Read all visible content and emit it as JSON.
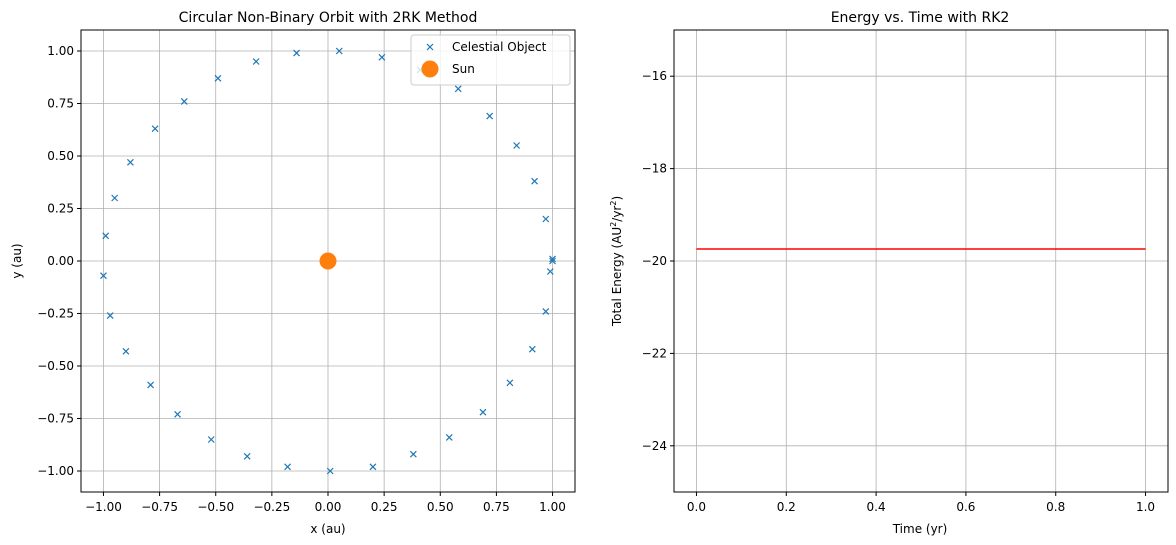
{
  "chart_data": [
    {
      "type": "scatter",
      "title": "Circular Non-Binary Orbit with 2RK Method",
      "xlabel": "x (au)",
      "ylabel": "y (au)",
      "xlim": [
        -1.1,
        1.1
      ],
      "ylim": [
        -1.1,
        1.1
      ],
      "xticks": [
        -1.0,
        -0.75,
        -0.5,
        -0.25,
        0.0,
        0.25,
        0.5,
        0.75,
        1.0
      ],
      "xtick_labels": [
        "−1.00",
        "−0.75",
        "−0.50",
        "−0.25",
        "0.00",
        "0.25",
        "0.50",
        "0.75",
        "1.00"
      ],
      "yticks": [
        -1.0,
        -0.75,
        -0.5,
        -0.25,
        0.0,
        0.25,
        0.5,
        0.75,
        1.0
      ],
      "ytick_labels": [
        "−1.00",
        "−0.75",
        "−0.50",
        "−0.25",
        "0.00",
        "0.25",
        "0.50",
        "0.75",
        "1.00"
      ],
      "grid": true,
      "legend": {
        "placement": "upper-right"
      },
      "series": [
        {
          "name": "Celestial Object",
          "marker": "x",
          "color": "#1f77b4",
          "points": [
            [
              1.0,
              0.0
            ],
            [
              0.99,
              -0.05
            ],
            [
              0.97,
              -0.24
            ],
            [
              0.91,
              -0.42
            ],
            [
              0.81,
              -0.58
            ],
            [
              0.69,
              -0.72
            ],
            [
              0.54,
              -0.84
            ],
            [
              0.38,
              -0.92
            ],
            [
              0.2,
              -0.98
            ],
            [
              0.01,
              -1.0
            ],
            [
              -0.18,
              -0.98
            ],
            [
              -0.36,
              -0.93
            ],
            [
              -0.52,
              -0.85
            ],
            [
              -0.67,
              -0.73
            ],
            [
              -0.79,
              -0.59
            ],
            [
              -0.9,
              -0.43
            ],
            [
              -0.97,
              -0.26
            ],
            [
              -1.0,
              -0.07
            ],
            [
              -0.99,
              0.12
            ],
            [
              -0.95,
              0.3
            ],
            [
              -0.88,
              0.47
            ],
            [
              -0.77,
              0.63
            ],
            [
              -0.64,
              0.76
            ],
            [
              -0.49,
              0.87
            ],
            [
              -0.32,
              0.95
            ],
            [
              -0.14,
              0.99
            ],
            [
              0.05,
              1.0
            ],
            [
              0.24,
              0.97
            ],
            [
              0.41,
              0.91
            ],
            [
              0.58,
              0.82
            ],
            [
              0.72,
              0.69
            ],
            [
              0.84,
              0.55
            ],
            [
              0.92,
              0.38
            ],
            [
              0.97,
              0.2
            ],
            [
              1.0,
              0.01
            ]
          ]
        },
        {
          "name": "Sun",
          "marker": "o",
          "color": "#ff7f0e",
          "points": [
            [
              0.0,
              0.0
            ]
          ]
        }
      ]
    },
    {
      "type": "line",
      "title": "Energy vs. Time with RK2",
      "xlabel": "Time (yr)",
      "ylabel_main": "Total Energy (AU",
      "ylabel_sup1": "2",
      "ylabel_mid": "/yr",
      "ylabel_sup2": "2",
      "ylabel_end": ")",
      "xlim": [
        -0.05,
        1.05
      ],
      "ylim": [
        -25,
        -15
      ],
      "xticks": [
        0.0,
        0.2,
        0.4,
        0.6,
        0.8,
        1.0
      ],
      "xtick_labels": [
        "0.0",
        "0.2",
        "0.4",
        "0.6",
        "0.8",
        "1.0"
      ],
      "yticks": [
        -24,
        -22,
        -20,
        -18,
        -16
      ],
      "ytick_labels": [
        "−24",
        "−22",
        "−20",
        "−18",
        "−16"
      ],
      "grid": true,
      "series": [
        {
          "color": "#ff0000",
          "x": [
            0.0,
            1.0
          ],
          "y": [
            -19.74,
            -19.74
          ]
        }
      ]
    }
  ]
}
